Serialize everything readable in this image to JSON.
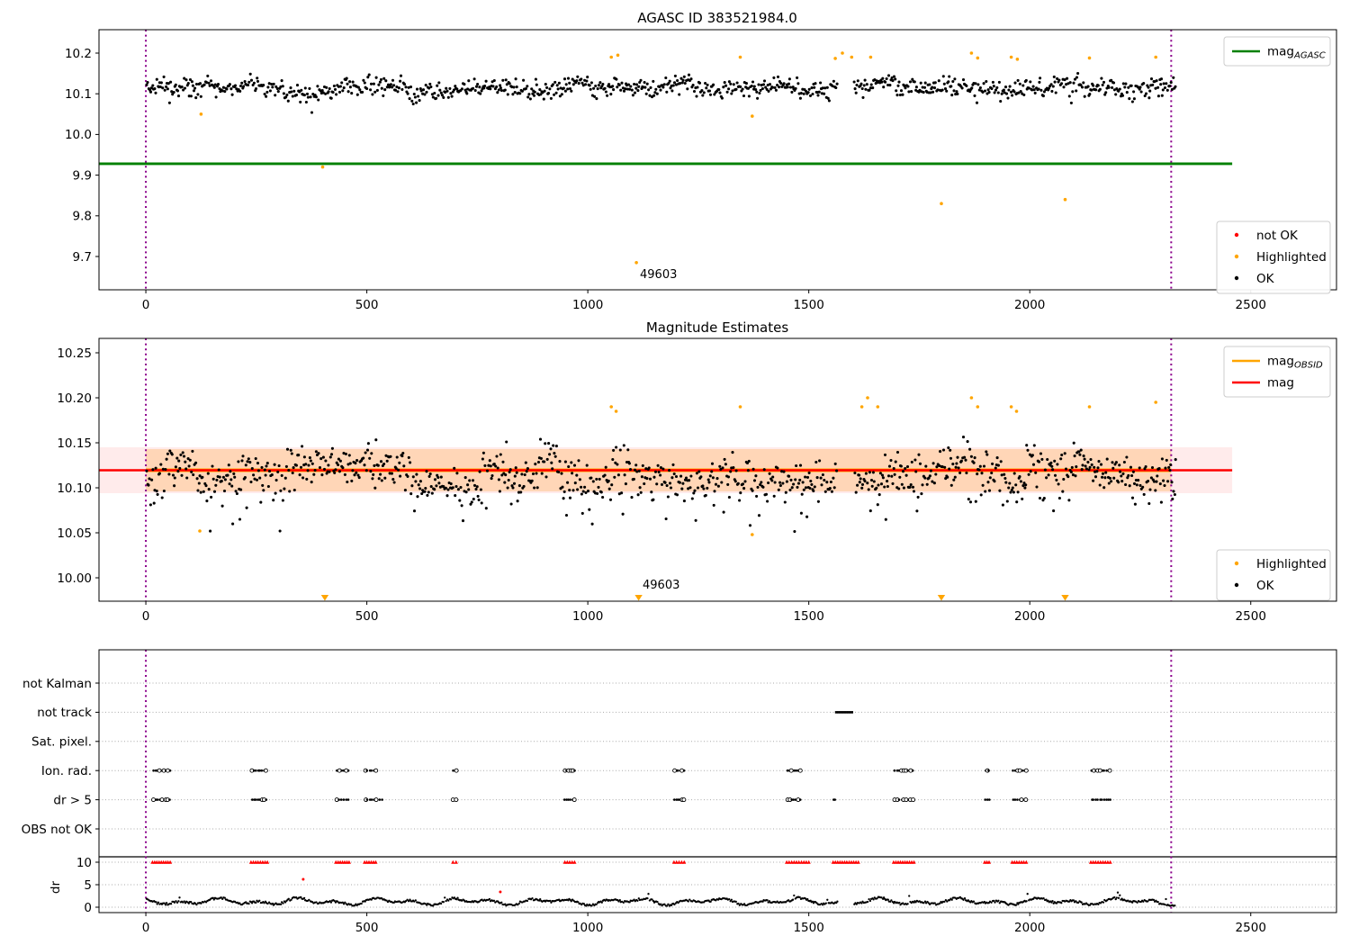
{
  "figure": {
    "background": "#ffffff"
  },
  "colors": {
    "ok_point": "#000000",
    "not_ok_point": "#ff0000",
    "highlighted_point": "#ffa500",
    "mag_agasc_line": "#008000",
    "mag_line": "#ff0000",
    "mag_obsid_line": "#ffa500",
    "obsid_boundary_vline": "#8b008b",
    "red_band": "rgba(255,0,0,0.08)",
    "orange_band": "rgba(255,140,0,0.22)",
    "grid_dotted": "#aaaaaa"
  },
  "chart_data": [
    {
      "id": "agasc-mag",
      "type": "scatter",
      "title": "AGASC ID 383521984.0",
      "xlim": [
        -106,
        2694
      ],
      "ylim": [
        9.618,
        10.2575
      ],
      "xticks": [
        0,
        500,
        1000,
        1500,
        2000,
        2500
      ],
      "xtick_labels": [
        "0",
        "500",
        "1000",
        "1500",
        "2000",
        "2500"
      ],
      "yticks": [
        9.7,
        9.8,
        9.9,
        10.0,
        10.1,
        10.2
      ],
      "ytick_labels": [
        "9.7",
        "9.8",
        "9.9",
        "10.0",
        "10.1",
        "10.2"
      ],
      "vlines_x": [
        0,
        2320
      ],
      "mag_agasc_value": 9.928,
      "hline_span": [
        -106,
        2458
      ],
      "ok_series": {
        "x_span": [
          2,
          2330
        ],
        "gap": [
          1565,
          1602
        ],
        "mean": 10.115,
        "seed": 42
      },
      "highlighted_points": [
        [
          125,
          10.05
        ],
        [
          400,
          9.92
        ],
        [
          1053,
          10.19
        ],
        [
          1068,
          10.195
        ],
        [
          1110,
          9.685
        ],
        [
          1345,
          10.19
        ],
        [
          1372,
          10.045
        ],
        [
          1560,
          10.187
        ],
        [
          1576,
          10.2
        ],
        [
          1597,
          10.19
        ],
        [
          1640,
          10.19
        ],
        [
          1800,
          9.83
        ],
        [
          1868,
          10.2
        ],
        [
          1882,
          10.188
        ],
        [
          1958,
          10.19
        ],
        [
          1972,
          10.185
        ],
        [
          2080,
          9.84
        ],
        [
          2135,
          10.188
        ],
        [
          2285,
          10.19
        ]
      ],
      "annotation": {
        "text": "49603",
        "x": 1110,
        "y": 9.685
      },
      "legend_lines": [
        {
          "label_base": "mag",
          "label_sub": "AGASC",
          "color": "#008000"
        }
      ],
      "legend_points": [
        {
          "label": "not OK",
          "color": "#ff0000"
        },
        {
          "label": "Highlighted",
          "color": "#ffa500"
        },
        {
          "label": "OK",
          "color": "#000000"
        }
      ]
    },
    {
      "id": "mag-estimates",
      "type": "scatter",
      "title": "Magnitude Estimates",
      "xlim": [
        -106,
        2694
      ],
      "ylim": [
        9.974,
        10.266
      ],
      "xticks": [
        0,
        500,
        1000,
        1500,
        2000,
        2500
      ],
      "xtick_labels": [
        "0",
        "500",
        "1000",
        "1500",
        "2000",
        "2500"
      ],
      "yticks": [
        10.0,
        10.05,
        10.1,
        10.15,
        10.2,
        10.25
      ],
      "ytick_labels": [
        "10.00",
        "10.05",
        "10.10",
        "10.15",
        "10.20",
        "10.25"
      ],
      "vlines_x": [
        0,
        2320
      ],
      "mag_value": 10.1195,
      "mag_err_band": [
        10.094,
        10.145
      ],
      "mag_obsid_value": 10.1195,
      "mag_obsid_band": [
        10.096,
        10.143
      ],
      "mag_obsid_span": [
        0,
        2320
      ],
      "hline_span": [
        -106,
        2458
      ],
      "ok_series": {
        "x_span": [
          2,
          2330
        ],
        "gap": [
          1565,
          1602
        ],
        "mean": 10.117,
        "seed": 7
      },
      "highlighted_points": [
        [
          122,
          10.052
        ],
        [
          1053,
          10.19
        ],
        [
          1064,
          10.185
        ],
        [
          1345,
          10.19
        ],
        [
          1372,
          10.048
        ],
        [
          1620,
          10.19
        ],
        [
          1633,
          10.2
        ],
        [
          1656,
          10.19
        ],
        [
          1868,
          10.2
        ],
        [
          1882,
          10.19
        ],
        [
          1958,
          10.19
        ],
        [
          1970,
          10.185
        ],
        [
          2135,
          10.19
        ],
        [
          2285,
          10.195
        ]
      ],
      "clipped_low_x": [
        405,
        1115,
        1800,
        2080
      ],
      "annotation": {
        "text": "49603",
        "x": 1115,
        "y": 9.985
      },
      "legend_lines": [
        {
          "label_base": "mag",
          "label_sub": "OBSID",
          "color": "#ffa500"
        },
        {
          "label_base": "mag",
          "label_sub": "",
          "color": "#ff0000"
        }
      ],
      "legend_points": [
        {
          "label": "Highlighted",
          "color": "#ffa500"
        },
        {
          "label": "OK",
          "color": "#000000"
        }
      ]
    },
    {
      "id": "flags-and-dr",
      "type": "flags_dr",
      "categories": [
        "not Kalman",
        "not track",
        "Sat. pixel.",
        "Ion. rad.",
        "dr > 5",
        "OBS not OK"
      ],
      "dr_ticks": [
        10,
        5,
        0
      ],
      "dr_tick_labels": [
        "10",
        "5",
        "0"
      ],
      "dr_axis_label": "dr",
      "xticks": [
        0,
        500,
        1000,
        1500,
        2000,
        2500
      ],
      "xtick_labels": [
        "0",
        "500",
        "1000",
        "1500",
        "2000",
        "2500"
      ],
      "vlines_x": [
        0,
        2320
      ],
      "not_track_clusters": [
        [
          1562,
          1598
        ]
      ],
      "ion_rad_clusters": [
        [
          18,
          55
        ],
        [
          240,
          272
        ],
        [
          432,
          458
        ],
        [
          497,
          520
        ],
        [
          695,
          702
        ],
        [
          948,
          970
        ],
        [
          1196,
          1218
        ],
        [
          1452,
          1480
        ],
        [
          1695,
          1735
        ],
        [
          1900,
          1908
        ],
        [
          1962,
          1992
        ],
        [
          2140,
          2182
        ]
      ],
      "dr_gt5_clusters": [
        [
          18,
          55
        ],
        [
          240,
          272
        ],
        [
          432,
          458
        ],
        [
          497,
          520
        ],
        [
          530,
          534
        ],
        [
          695,
          702
        ],
        [
          948,
          970
        ],
        [
          1196,
          1218
        ],
        [
          1452,
          1480
        ],
        [
          1555,
          1560
        ],
        [
          1695,
          1735
        ],
        [
          1900,
          1908
        ],
        [
          1962,
          1992
        ],
        [
          2140,
          2182
        ]
      ],
      "dr_clipped10_clusters": [
        [
          15,
          55
        ],
        [
          238,
          275
        ],
        [
          430,
          460
        ],
        [
          495,
          520
        ],
        [
          695,
          702
        ],
        [
          948,
          970
        ],
        [
          1195,
          1218
        ],
        [
          1450,
          1500
        ],
        [
          1555,
          1612
        ],
        [
          1692,
          1738
        ],
        [
          1898,
          1908
        ],
        [
          1960,
          1992
        ],
        [
          2138,
          2182
        ]
      ],
      "dr_red_outliers": [
        [
          356,
          6.2
        ],
        [
          802,
          3.4
        ]
      ],
      "dr_series": {
        "x_span": [
          2,
          2330
        ],
        "gap": [
          1565,
          1602
        ],
        "seed": 99,
        "typical_range": [
          0.3,
          3.0
        ]
      }
    }
  ]
}
